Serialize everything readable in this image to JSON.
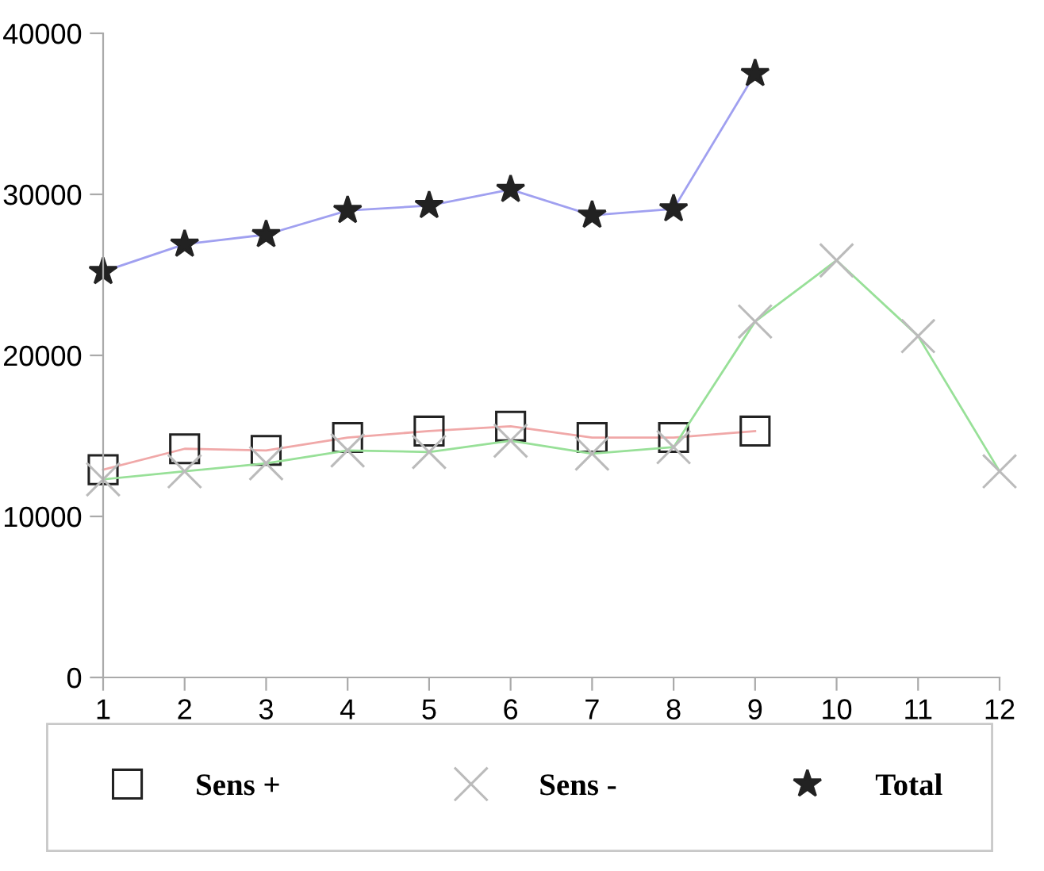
{
  "chart_data": {
    "type": "line",
    "x": [
      1,
      2,
      3,
      4,
      5,
      6,
      7,
      8,
      9,
      10,
      11,
      12
    ],
    "xlim": [
      1,
      12
    ],
    "xticks": [
      1,
      2,
      3,
      4,
      5,
      6,
      7,
      8,
      9,
      10,
      11,
      12
    ],
    "ylim": [
      0,
      40000
    ],
    "yticks": [
      0,
      10000,
      20000,
      30000,
      40000
    ],
    "grid": false,
    "legend": "bottom",
    "series": [
      {
        "name": "Sens +",
        "color": "#f0a8a8",
        "marker": "square",
        "values": [
          12900,
          14200,
          14100,
          14900,
          15300,
          15600,
          14900,
          14900,
          15300,
          null,
          null,
          null
        ]
      },
      {
        "name": "Sens -",
        "color": "#98e098",
        "marker": "cross",
        "values": [
          12300,
          12800,
          13300,
          14100,
          14000,
          14700,
          13900,
          14300,
          22100,
          25900,
          21200,
          12800
        ]
      },
      {
        "name": "Total",
        "color": "#a0a0f0",
        "marker": "star",
        "values": [
          25200,
          26900,
          27500,
          29000,
          29300,
          30300,
          28700,
          29100,
          37500,
          null,
          null,
          null
        ]
      }
    ]
  }
}
